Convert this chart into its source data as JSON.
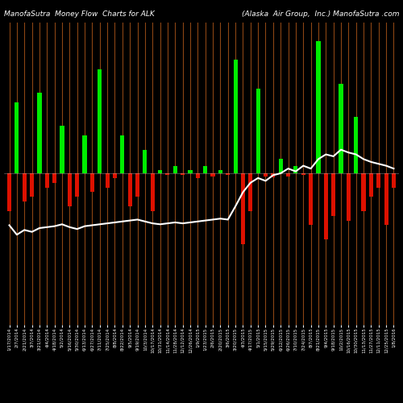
{
  "title_left": "ManofaSutra  Money Flow  Charts for ALK",
  "title_right": "(Alaska  Air Group,  Inc.) ManofaSutra .com",
  "bg_color": "#000000",
  "bar_color_pos": "#00ee00",
  "bar_color_neg": "#dd1100",
  "line_color": "#ffffff",
  "grid_color": "#8B4513",
  "categories": [
    "1/17/2014",
    "2/7/2014",
    "2/21/2014",
    "3/7/2014",
    "3/21/2014",
    "4/4/2014",
    "4/18/2014",
    "5/2/2014",
    "5/16/2014",
    "5/30/2014",
    "6/13/2014",
    "6/27/2014",
    "7/11/2014",
    "7/25/2014",
    "8/8/2014",
    "8/22/2014",
    "9/5/2014",
    "9/19/2014",
    "10/3/2014",
    "10/17/2014",
    "10/31/2014",
    "11/14/2014",
    "11/28/2014",
    "12/12/2014",
    "12/26/2014",
    "1/9/2015",
    "1/23/2015",
    "2/6/2015",
    "2/20/2015",
    "3/6/2015",
    "3/20/2015",
    "4/3/2015",
    "4/17/2015",
    "5/1/2015",
    "5/15/2015",
    "5/29/2015",
    "6/12/2015",
    "6/26/2015",
    "7/10/2015",
    "7/24/2015",
    "8/7/2015",
    "8/21/2015",
    "9/4/2015",
    "9/18/2015",
    "10/2/2015",
    "10/16/2015",
    "10/30/2015",
    "11/13/2015",
    "11/27/2015",
    "12/11/2015",
    "12/25/2015",
    "1/8/2016"
  ],
  "bar_values": [
    -4.0,
    7.5,
    -3.0,
    -2.5,
    8.5,
    -1.5,
    -1.0,
    5.0,
    -3.5,
    -2.5,
    4.0,
    -2.0,
    11.0,
    -1.5,
    -0.5,
    4.0,
    -3.5,
    -2.5,
    2.5,
    -4.0,
    0.3,
    -0.2,
    0.8,
    -0.2,
    0.3,
    -0.5,
    0.8,
    -0.3,
    0.3,
    -0.2,
    12.0,
    -7.5,
    -4.0,
    9.0,
    -0.3,
    -0.4,
    1.5,
    -0.3,
    0.8,
    -0.2,
    -5.5,
    14.0,
    -7.0,
    -4.5,
    9.5,
    -5.0,
    6.0,
    -4.0,
    -2.5,
    -1.5,
    -5.5,
    -1.5
  ],
  "line_values": [
    -5.5,
    -6.5,
    -6.0,
    -6.2,
    -5.8,
    -5.7,
    -5.6,
    -5.4,
    -5.7,
    -5.9,
    -5.6,
    -5.5,
    -5.4,
    -5.3,
    -5.2,
    -5.1,
    -5.0,
    -4.9,
    -5.1,
    -5.3,
    -5.4,
    -5.3,
    -5.2,
    -5.3,
    -5.2,
    -5.1,
    -5.0,
    -4.9,
    -4.8,
    -4.9,
    -3.5,
    -2.0,
    -1.0,
    -0.5,
    -0.8,
    -0.2,
    0.0,
    0.5,
    0.2,
    0.8,
    0.5,
    1.5,
    2.0,
    1.8,
    2.5,
    2.2,
    2.0,
    1.5,
    1.2,
    1.0,
    0.8,
    0.5
  ],
  "ylim": [
    -16,
    16
  ],
  "figsize": [
    5.0,
    5.0
  ],
  "dpi": 100
}
